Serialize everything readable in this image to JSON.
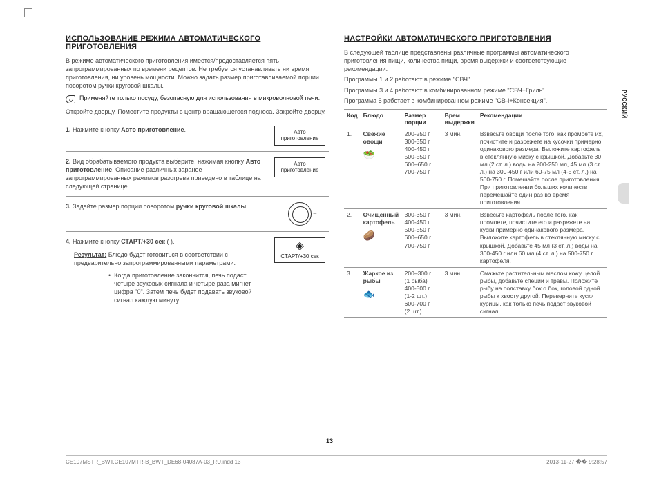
{
  "sideTab": "РУССКИЙ",
  "pageNumber": "13",
  "footer": {
    "left": "CE107MSTR_BWT,CE107MTR-B_BWT_DE68-04087A-03_RU.indd   13",
    "right": "2013-11-27   �� 9:28:57"
  },
  "left": {
    "title": "ИСПОЛЬЗОВАНИЕ РЕЖИМА АВТОМАТИЧЕСКОГО ПРИГОТОВЛЕНИЯ",
    "intro": "В режиме автоматического приготовления имеется/предоставляется пять запрограммированных по времени рецептов. Не требуется устанавливать ни время приготовления, ни уровень мощности. Можно задать размер приготавливаемой порции поворотом ручки круговой шкалы.",
    "note": "Применяйте только посуду, безопасную для использования в микроволновой печи.",
    "open": "Откройте дверцу. Поместите продукты в центр вращающегося подноса. Закройте дверцу.",
    "step1": {
      "num": "1.",
      "pre": "Нажмите кнопку ",
      "bold": "Авто приготовление",
      "post": ".",
      "btn": "Авто\nприготовление"
    },
    "step2": {
      "num": "2.",
      "pre": "Вид обрабатываемого продукта выберите, нажимая кнопку ",
      "bold": "Авто приготовление",
      "post": ". Описание различных заранее запрограммированных режимов разогрева приведено в таблице на следующей странице.",
      "btn": "Авто\nприготовление"
    },
    "step3": {
      "num": "3.",
      "pre": "Задайте размер порции поворотом ",
      "bold": "ручки круговой шкалы",
      "post": "."
    },
    "step4": {
      "num": "4.",
      "pre": "Нажмите кнопку ",
      "bold": "СТАРТ/+30 сек",
      "post": " (     ).",
      "resultLbl": "Результат:",
      "resultTxt": "Блюдо будет готовиться в соответствии с предварительно запрограммированными параметрами.",
      "bullet": "Когда приготовление закончится, печь подаст четыре звуковых сигнала и четыре раза мигнет цифра \"0\". Затем печь будет подавать звуковой сигнал каждую минуту.",
      "startLabel": "СТАРТ/+30 сек"
    }
  },
  "right": {
    "title": "НАСТРОЙКИ АВТОМАТИЧЕСКОГО ПРИГОТОВЛЕНИЯ",
    "intro1": "В следующей таблице представлены различные программы автоматического приготовления пищи, количества пищи, время выдержки и соответствующие рекомендации.",
    "intro2": "Программы 1 и 2 работают в режиме \"СВЧ\".",
    "intro3": "Программы 3 и 4 работают в комбинированном режиме \"СВЧ+Гриль\".",
    "intro4": "Программа 5 работает в комбинированном режиме \"СВЧ+Конвекция\".",
    "th": {
      "code": "Код",
      "dish": "Блюдо",
      "port": "Размер порции",
      "hold": "Врем выдержки",
      "rec": "Рекомендации"
    },
    "rows": [
      {
        "n": "1.",
        "dish": "Свежие овощи",
        "icon": "🥗",
        "port": "200-250 г\n300-350 г\n400-450 г\n500-550 г\n600–650 г\n700-750 г",
        "hold": "3 мин.",
        "rec": "Взвесьте овощи после того, как промоете их, почистите и разрежете на кусочки примерно одинакового размера. Выложите картофель в стеклянную миску с крышкой. Добавьте 30 мл (2 ст. л.) воды на 200-250 мл, 45 мл (3 ст. л.) на 300-450 г или 60-75 мл (4-5 ст. л.) на 500-750 г. Помешайте после приготовления. При приготовлении больших количеств перемешайте один раз во время приготовления."
      },
      {
        "n": "2.",
        "dish": "Очищенный картофель",
        "icon": "🥔",
        "port": "300-350 г\n400-450 г\n500-550 г\n600–650 г\n700-750 г",
        "hold": "3 мин.",
        "rec": "Взвесьте картофель после того, как промоете, почистите его и разрежете на куски примерно одинакового размера. Выложите картофель в стеклянную миску с крышкой. Добавьте 45 мл (3 ст. л.) воды на 300-450 г или 60 мл (4 ст. л.) на 500-750 г картофеля."
      },
      {
        "n": "3.",
        "dish": "Жаркое из рыбы",
        "icon": "🐟",
        "port": "200–300 г\n(1 рыба)\n400-500 г\n(1-2 шт.)\n600-700 г\n(2 шт.)",
        "hold": "3 мин.",
        "rec": "Смажьте растительным маслом кожу целой рыбы, добавьте специи и травы. Положите рыбу на подставку бок о бок, головой одной рыбы к хвосту другой. Переверните куски курицы, как только печь подаст звуковой сигнал."
      }
    ]
  }
}
